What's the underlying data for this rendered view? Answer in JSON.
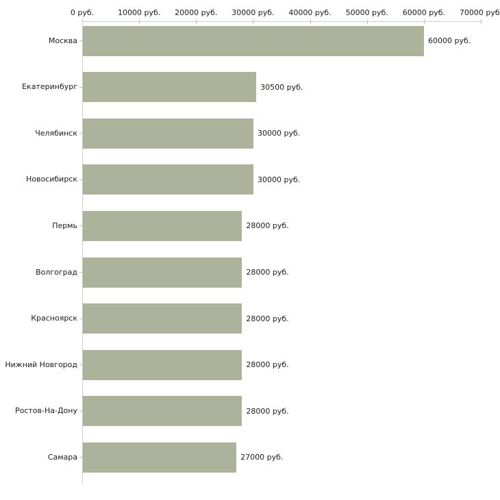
{
  "chart_data": {
    "type": "bar",
    "orientation": "horizontal",
    "categories": [
      "Москва",
      "Екатеринбург",
      "Челябинск",
      "Новосибирск",
      "Пермь",
      "Волгоград",
      "Красноярск",
      "Нижний Новгород",
      "Ростов-На-Дону",
      "Самара"
    ],
    "values": [
      60000,
      30500,
      30000,
      30000,
      28000,
      28000,
      28000,
      28000,
      28000,
      27000
    ],
    "value_labels": [
      "60000 руб.",
      "30500 руб.",
      "30000 руб.",
      "30000 руб.",
      "28000 руб.",
      "28000 руб.",
      "28000 руб.",
      "28000 руб.",
      "28000 руб.",
      "27000 руб."
    ],
    "x_tick_labels": [
      "0 руб.",
      "10000 руб.",
      "20000 руб.",
      "30000 руб.",
      "40000 руб.",
      "50000 руб.",
      "60000 руб.",
      "70000 руб."
    ],
    "x_tick_values": [
      0,
      10000,
      20000,
      30000,
      40000,
      50000,
      60000,
      70000
    ],
    "xlim": [
      0,
      70000
    ],
    "xlabel": "",
    "ylabel": "",
    "grid": false,
    "legend": false,
    "colors": {
      "bar": "#adb39b",
      "axis_line": "#cccccc",
      "tick_mark": "#c2c39a",
      "text": "#1a1a1a",
      "background": "#ffffff"
    }
  }
}
